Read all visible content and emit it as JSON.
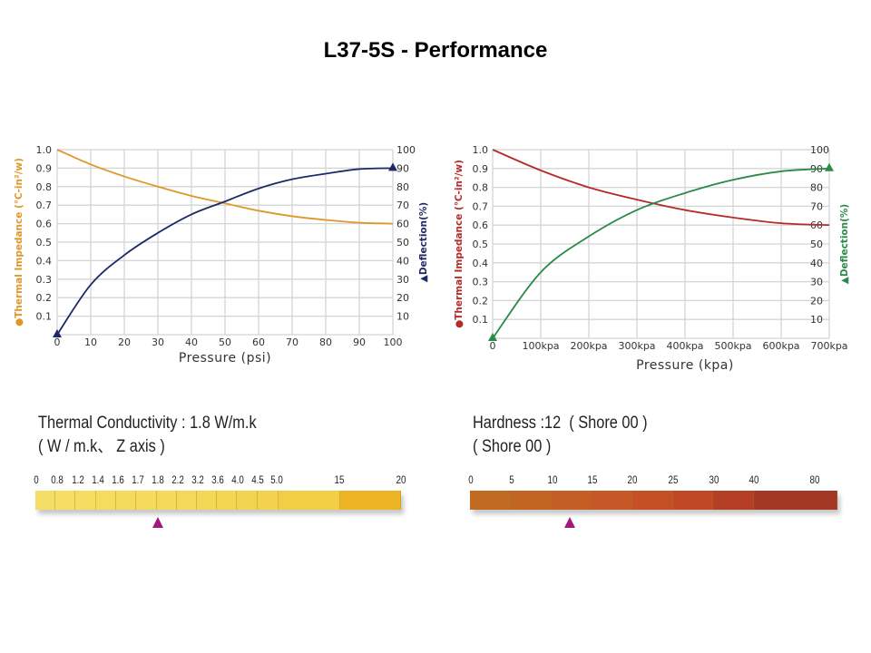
{
  "page": {
    "title": "L37-5S - Performance"
  },
  "chart_data": [
    {
      "type": "line",
      "x_axis": {
        "label": "Pressure (psi)",
        "range": [
          0,
          100
        ],
        "ticks": [
          "0",
          "10",
          "20",
          "30",
          "40",
          "50",
          "60",
          "70",
          "80",
          "90",
          "100"
        ]
      },
      "y_left": {
        "label": "Thermal Impedance (℃-in²/w)",
        "legend_marker": "●",
        "range": [
          0,
          1.0
        ],
        "ticks": [
          "0.1",
          "0.2",
          "0.3",
          "0.4",
          "0.5",
          "0.6",
          "0.7",
          "0.8",
          "0.9",
          "1.0"
        ]
      },
      "y_right": {
        "label": "Deflection(%)",
        "legend_marker": "▲",
        "range": [
          0,
          100
        ],
        "ticks": [
          "10",
          "20",
          "30",
          "40",
          "50",
          "60",
          "70",
          "80",
          "90",
          "100"
        ]
      },
      "grid": true,
      "series": [
        {
          "name": "Thermal Impedance",
          "axis": "left",
          "color": "#e0962a",
          "x": [
            0,
            10,
            20,
            30,
            40,
            50,
            60,
            70,
            80,
            90,
            100
          ],
          "y": [
            1.0,
            0.92,
            0.855,
            0.8,
            0.75,
            0.71,
            0.67,
            0.64,
            0.62,
            0.605,
            0.6
          ]
        },
        {
          "name": "Deflection",
          "axis": "right",
          "color": "#1e2a66",
          "marker": "triangle",
          "x": [
            0,
            10,
            20,
            30,
            40,
            50,
            60,
            70,
            80,
            90,
            100
          ],
          "y": [
            0,
            27,
            43,
            55,
            65,
            72,
            79,
            84,
            87,
            89.5,
            90
          ]
        }
      ]
    },
    {
      "type": "line",
      "x_axis": {
        "label": "Pressure (kpa)",
        "range": [
          0,
          700
        ],
        "ticks": [
          "0",
          "100kpa",
          "200kpa",
          "300kpa",
          "400kpa",
          "500kpa",
          "600kpa",
          "700kpa"
        ]
      },
      "y_left": {
        "label": "Thermal Impedance (℃-in²/w)",
        "legend_marker": "●",
        "range": [
          0,
          1.0
        ],
        "ticks": [
          "0.1",
          "0.2",
          "0.3",
          "0.4",
          "0.5",
          "0.6",
          "0.7",
          "0.8",
          "0.9",
          "1.0"
        ]
      },
      "y_right": {
        "label": "Deflection(%)",
        "legend_marker": "▲",
        "range": [
          0,
          100
        ],
        "ticks": [
          "10",
          "20",
          "30",
          "40",
          "50",
          "60",
          "70",
          "80",
          "90",
          "100"
        ]
      },
      "grid": true,
      "series": [
        {
          "name": "Thermal Impedance",
          "axis": "left",
          "color": "#b52a2a",
          "x": [
            0,
            100,
            200,
            300,
            400,
            500,
            600,
            700
          ],
          "y": [
            1.0,
            0.89,
            0.8,
            0.735,
            0.68,
            0.64,
            0.61,
            0.6
          ]
        },
        {
          "name": "Deflection",
          "axis": "right",
          "color": "#2a8a48",
          "marker": "triangle",
          "x": [
            0,
            100,
            200,
            300,
            400,
            500,
            600,
            700
          ],
          "y": [
            0,
            35,
            54,
            68,
            77,
            84,
            88.5,
            90
          ]
        }
      ]
    }
  ],
  "conductivity": {
    "title": "Thermal Conductivity :",
    "value": "1.8 W/m.k",
    "subtitle": "( W / m.k、 Z axis )",
    "labels": [
      "0",
      "0.8",
      "1.2",
      "1.4",
      "1.6",
      "1.7",
      "1.8",
      "2.2",
      "3.2",
      "3.6",
      "4.0",
      "4.5",
      "5.0",
      "15",
      "20"
    ],
    "segment_colors": [
      "#f5de65",
      "#f5de63",
      "#f5dd61",
      "#f5dc5f",
      "#f5db5d",
      "#f5da5b",
      "#f5d959",
      "#f4d857",
      "#f4d755",
      "#f4d653",
      "#f3d451",
      "#f3d24e",
      "#f2cd46",
      "#edb424"
    ],
    "marker_value": "1.8",
    "marker_color": "#a4177d"
  },
  "hardness": {
    "title": "Hardness :",
    "value": "12",
    "value_unit": "( Shore 00 )",
    "subtitle": "( Shore  00 )",
    "labels": [
      "0",
      "5",
      "10",
      "15",
      "20",
      "25",
      "30",
      "40",
      "80"
    ],
    "segment_colors": [
      "#c06a22",
      "#c26424",
      "#c45e25",
      "#c55826",
      "#c65026",
      "#c24725",
      "#b53f25",
      "#a53825"
    ],
    "marker_value": "12",
    "marker_color": "#a4177d"
  }
}
